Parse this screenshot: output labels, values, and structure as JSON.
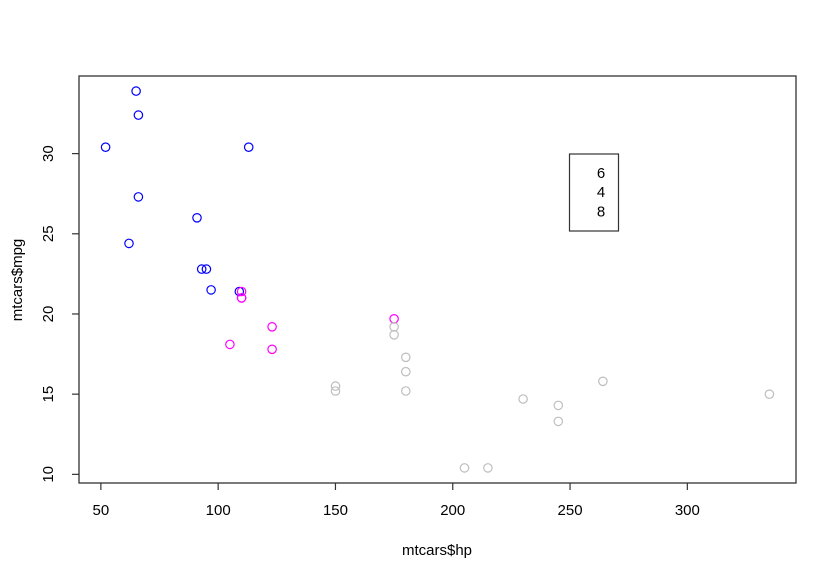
{
  "figure": {
    "background": "#ffffff",
    "frame_color": "#333333"
  },
  "chart_data": {
    "type": "scatter",
    "title": "",
    "xlabel": "mtcars$hp",
    "ylabel": "mtcars$mpg",
    "xlim": [
      40.68,
      346.32
    ],
    "ylim": [
      9.46,
      34.84
    ],
    "x_ticks": [
      50,
      100,
      150,
      200,
      250,
      300
    ],
    "y_ticks": [
      10,
      15,
      20,
      25,
      30
    ],
    "grid": false,
    "point_style": "open-circle",
    "legend": {
      "position": "top-right-inset",
      "entries": [
        {
          "label": "6",
          "color": "#FF00FF"
        },
        {
          "label": "4",
          "color": "#0000FF"
        },
        {
          "label": "8",
          "color": "#BEBEBE"
        }
      ]
    },
    "series": [
      {
        "name": "4",
        "color": "#0000FF",
        "points": [
          [
            93,
            22.8
          ],
          [
            62,
            24.4
          ],
          [
            95,
            22.8
          ],
          [
            66,
            32.4
          ],
          [
            52,
            30.4
          ],
          [
            65,
            33.9
          ],
          [
            97,
            21.5
          ],
          [
            66,
            27.3
          ],
          [
            91,
            26.0
          ],
          [
            113,
            30.4
          ],
          [
            109,
            21.4
          ]
        ]
      },
      {
        "name": "6",
        "color": "#FF00FF",
        "points": [
          [
            110,
            21.0
          ],
          [
            110,
            21.0
          ],
          [
            110,
            21.4
          ],
          [
            105,
            18.1
          ],
          [
            123,
            19.2
          ],
          [
            123,
            17.8
          ],
          [
            175,
            19.7
          ]
        ]
      },
      {
        "name": "8",
        "color": "#BEBEBE",
        "points": [
          [
            175,
            18.7
          ],
          [
            245,
            14.3
          ],
          [
            180,
            16.4
          ],
          [
            180,
            17.3
          ],
          [
            180,
            15.2
          ],
          [
            205,
            10.4
          ],
          [
            215,
            10.4
          ],
          [
            230,
            14.7
          ],
          [
            150,
            15.5
          ],
          [
            150,
            15.2
          ],
          [
            245,
            13.3
          ],
          [
            175,
            19.2
          ],
          [
            264,
            15.8
          ],
          [
            335,
            15.0
          ]
        ]
      }
    ]
  }
}
